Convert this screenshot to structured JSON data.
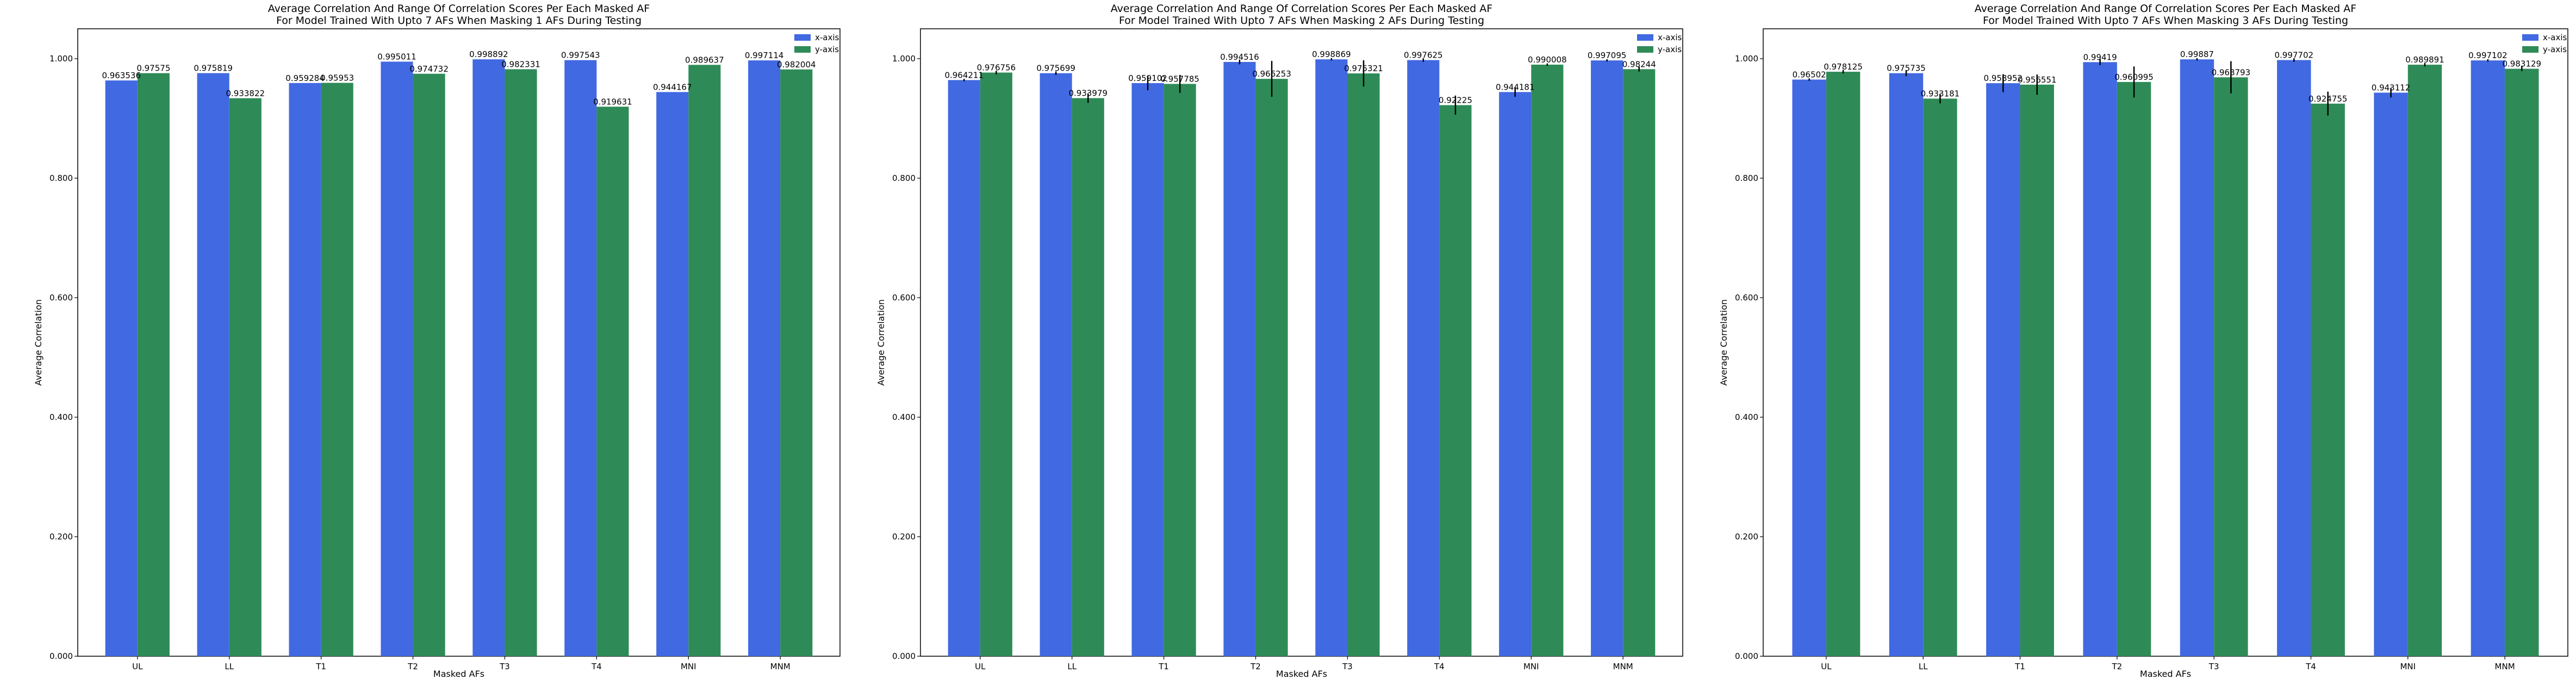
{
  "colors": {
    "x_axis": "#4169e1",
    "y_axis": "#2e8b57",
    "error_bar": "#000000",
    "frame": "#000000",
    "background": "#ffffff"
  },
  "chart_data": [
    {
      "type": "bar",
      "title_line1": "Average Correlation And Range Of Correlation Scores Per Each Masked AF",
      "title_line2": "For Model Trained With Upto 7 AFs When Masking 1 AFs During Testing",
      "xlabel": "Masked AFs",
      "ylabel": "Average Correlation",
      "ylim": [
        0,
        1.05
      ],
      "yticks": [
        "0.000",
        "0.200",
        "0.400",
        "0.600",
        "0.800",
        "1.000"
      ],
      "categories": [
        "UL",
        "LL",
        "T1",
        "T2",
        "T3",
        "T4",
        "MNI",
        "MNM"
      ],
      "legend_position": "top-right",
      "series": [
        {
          "name": "x-axis",
          "values": [
            0.963536,
            0.975819,
            0.959284,
            0.995011,
            0.998892,
            0.997543,
            0.944167,
            0.997114
          ],
          "labels": [
            "0.963536",
            "0.975819",
            "0.959284",
            "0.995011",
            "0.998892",
            "0.997543",
            "0.944167",
            "0.997114"
          ],
          "err": [
            0,
            0,
            0,
            0,
            0,
            0,
            0,
            0
          ]
        },
        {
          "name": "y-axis",
          "values": [
            0.97575,
            0.933822,
            0.95953,
            0.974732,
            0.982331,
            0.919631,
            0.989637,
            0.982004
          ],
          "labels": [
            "0.97575",
            "0.933822",
            "0.95953",
            "0.974732",
            "0.982331",
            "0.919631",
            "0.989637",
            "0.982004"
          ],
          "err": [
            0,
            0,
            0,
            0,
            0,
            0,
            0,
            0
          ]
        }
      ]
    },
    {
      "type": "bar",
      "title_line1": "Average Correlation And Range Of Correlation Scores Per Each Masked AF",
      "title_line2": "For Model Trained With Upto 7 AFs When Masking 2 AFs During Testing",
      "xlabel": "Masked AFs",
      "ylabel": "Average Correlation",
      "ylim": [
        0,
        1.05
      ],
      "yticks": [
        "0.000",
        "0.200",
        "0.400",
        "0.600",
        "0.800",
        "1.000"
      ],
      "categories": [
        "UL",
        "LL",
        "T1",
        "T2",
        "T3",
        "T4",
        "MNI",
        "MNM"
      ],
      "legend_position": "top-right",
      "series": [
        {
          "name": "x-axis",
          "values": [
            0.964211,
            0.975699,
            0.959102,
            0.994516,
            0.998869,
            0.997625,
            0.944181,
            0.997095
          ],
          "labels": [
            "0.964211",
            "0.975699",
            "0.959102",
            "0.994516",
            "0.998869",
            "0.997625",
            "0.944181",
            "0.997095"
          ],
          "err": [
            0.002,
            0.003,
            0.012,
            0.004,
            0.002,
            0.003,
            0.008,
            0.002
          ]
        },
        {
          "name": "y-axis",
          "values": [
            0.976756,
            0.933979,
            0.957785,
            0.966253,
            0.975321,
            0.92225,
            0.990008,
            0.98244
          ],
          "labels": [
            "0.976756",
            "0.933979",
            "0.957785",
            "0.966253",
            "0.975321",
            "0.92225",
            "0.990008",
            "0.98244"
          ],
          "err": [
            0.003,
            0.008,
            0.015,
            0.03,
            0.022,
            0.016,
            0.002,
            0.004
          ]
        }
      ]
    },
    {
      "type": "bar",
      "title_line1": "Average Correlation And Range Of Correlation Scores Per Each Masked AF",
      "title_line2": "For Model Trained With Upto 7 AFs When Masking 3 AFs During Testing",
      "xlabel": "Masked AFs",
      "ylabel": "Average Correlation",
      "ylim": [
        0,
        1.05
      ],
      "yticks": [
        "0.000",
        "0.200",
        "0.400",
        "0.600",
        "0.800",
        "1.000"
      ],
      "categories": [
        "UL",
        "LL",
        "T1",
        "T2",
        "T3",
        "T4",
        "MNI",
        "MNM"
      ],
      "legend_position": "top-right",
      "series": [
        {
          "name": "x-axis",
          "values": [
            0.96502,
            0.975735,
            0.958952,
            0.99419,
            0.99887,
            0.997702,
            0.943112,
            0.997102
          ],
          "labels": [
            "0.96502",
            "0.975735",
            "0.958952",
            "0.99419",
            "0.99887",
            "0.997702",
            "0.943112",
            "0.997102"
          ],
          "err": [
            0.002,
            0.005,
            0.015,
            0.005,
            0.002,
            0.003,
            0.008,
            0.002
          ]
        },
        {
          "name": "y-axis",
          "values": [
            0.978125,
            0.933181,
            0.956551,
            0.960995,
            0.968793,
            0.924755,
            0.989891,
            0.983129
          ],
          "labels": [
            "0.978125",
            "0.933181",
            "0.956551",
            "0.960995",
            "0.968793",
            "0.924755",
            "0.989891",
            "0.983129"
          ],
          "err": [
            0.003,
            0.008,
            0.017,
            0.026,
            0.027,
            0.02,
            0.003,
            0.004
          ]
        }
      ]
    }
  ]
}
